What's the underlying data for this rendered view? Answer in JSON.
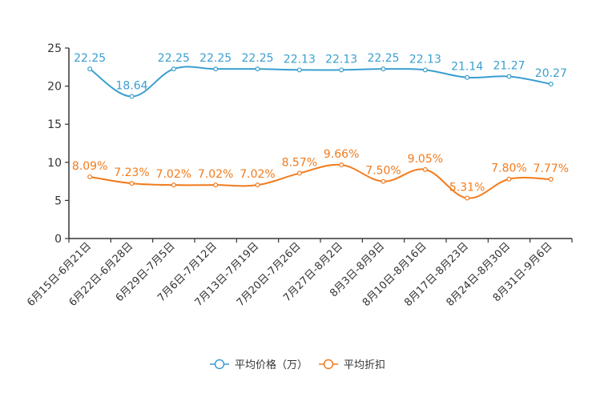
{
  "chart_data": {
    "type": "line",
    "title": "",
    "xlabel": "",
    "ylabel": "",
    "ylim": [
      0,
      25
    ],
    "yticks": [
      0,
      5,
      10,
      15,
      20,
      25
    ],
    "grid": false,
    "legend_position": "bottom-center",
    "categories": [
      "6月15日-6月21日",
      "6月22日-6月28日",
      "6月29日-7月5日",
      "7月6日-7月12日",
      "7月13日-7月19日",
      "7月20日-7月26日",
      "7月27日-8月2日",
      "8月3日-8月9日",
      "8月10日-8月16日",
      "8月17日-8月23日",
      "8月24日-8月30日",
      "8月31日-9月6日"
    ],
    "series": [
      {
        "name": "平均价格（万）",
        "color": "#3a9fcf",
        "values": [
          22.25,
          18.64,
          22.25,
          22.25,
          22.25,
          22.13,
          22.13,
          22.25,
          22.13,
          21.14,
          21.27,
          20.27
        ],
        "labels": [
          "22.25",
          "18.64",
          "22.25",
          "22.25",
          "22.25",
          "22.13",
          "22.13",
          "22.25",
          "22.13",
          "21.14",
          "21.27",
          "20.27"
        ]
      },
      {
        "name": "平均折扣",
        "color": "#f27b1c",
        "values": [
          8.09,
          7.23,
          7.02,
          7.02,
          7.02,
          8.57,
          9.66,
          7.5,
          9.05,
          5.31,
          7.8,
          7.77
        ],
        "labels": [
          "8.09%",
          "7.23%",
          "7.02%",
          "7.02%",
          "7.02%",
          "8.57%",
          "9.66%",
          "7.50%",
          "9.05%",
          "5.31%",
          "7.80%",
          "7.77%"
        ]
      }
    ]
  }
}
